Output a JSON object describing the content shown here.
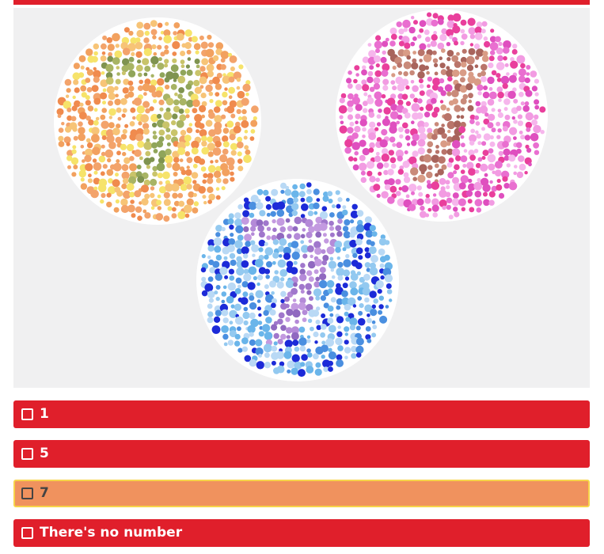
{
  "quiz": {
    "image": {
      "icon": "ishihara-color-blindness-plates",
      "plates": [
        {
          "name": "plate-yellow-orange",
          "hidden_number": "7",
          "bg_colors": [
            "#f3a36b",
            "#f08b4e",
            "#f7c477",
            "#f6e36a",
            "#f2a15f"
          ],
          "fig_colors": [
            "#a8b464",
            "#90a55a",
            "#c9c46a",
            "#7f9350"
          ]
        },
        {
          "name": "plate-pink-magenta",
          "hidden_number": "7",
          "bg_colors": [
            "#e96fd0",
            "#f29be2",
            "#df4fbf",
            "#f6b6ec",
            "#e93f9c"
          ],
          "fig_colors": [
            "#c98a7a",
            "#b9746a",
            "#d99c86",
            "#a8645c"
          ]
        },
        {
          "name": "plate-blue",
          "hidden_number": "7",
          "bg_colors": [
            "#6ab5ea",
            "#93c9f0",
            "#1c2ad8",
            "#4a8fe0",
            "#b9d9f5"
          ],
          "fig_colors": [
            "#b48ad8",
            "#a077cc",
            "#c39ae0",
            "#9069c0"
          ]
        }
      ]
    },
    "options": [
      {
        "label": "1",
        "selected": false
      },
      {
        "label": "5",
        "selected": false
      },
      {
        "label": "7",
        "selected": true
      },
      {
        "label": "There's no number",
        "selected": false
      }
    ]
  },
  "colors": {
    "accent": "#e01f2b",
    "selected_fill": "#f0925e",
    "selected_border": "#f7d34a",
    "image_bg": "#f0f0f1"
  }
}
